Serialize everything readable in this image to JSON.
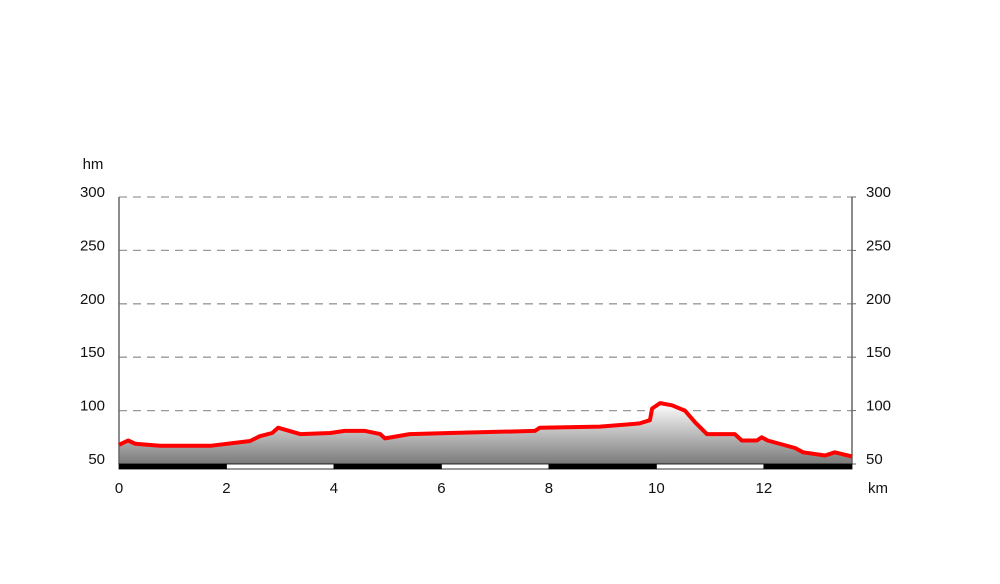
{
  "chart_data": {
    "type": "area",
    "y_label": "hm",
    "x_label": "km",
    "x": [
      0,
      0.17,
      0.3,
      0.76,
      1.7,
      2.44,
      2.62,
      2.85,
      2.96,
      3.37,
      3.93,
      4.2,
      4.58,
      4.86,
      4.95,
      5.41,
      6.16,
      7.74,
      7.83,
      8.95,
      9.69,
      9.88,
      9.92,
      10.07,
      10.29,
      10.53,
      10.72,
      10.94,
      11.27,
      11.46,
      11.59,
      11.87,
      11.96,
      12.07,
      12.58,
      12.73,
      13.14,
      13.32,
      13.64
    ],
    "series": [
      {
        "color": "#ff0000",
        "values": [
          68,
          72,
          69,
          67,
          67,
          71.5,
          76,
          79,
          84,
          78,
          79,
          81,
          81,
          78,
          74,
          78,
          79,
          81,
          84,
          85,
          88,
          91,
          102,
          107,
          105,
          100,
          89,
          78,
          78,
          78,
          72,
          72,
          75,
          72,
          65,
          61,
          58,
          61,
          57
        ]
      }
    ],
    "xlim": [
      0,
      13.64
    ],
    "xticks": [
      0,
      2,
      4,
      6,
      8,
      10,
      12
    ],
    "ylim": [
      50,
      300
    ],
    "yticks": [
      50,
      100,
      150,
      200,
      250,
      300
    ],
    "y2lim": [
      50,
      300
    ],
    "y2ticks": [
      50,
      100,
      150,
      200,
      250,
      300
    ],
    "grid": true
  }
}
